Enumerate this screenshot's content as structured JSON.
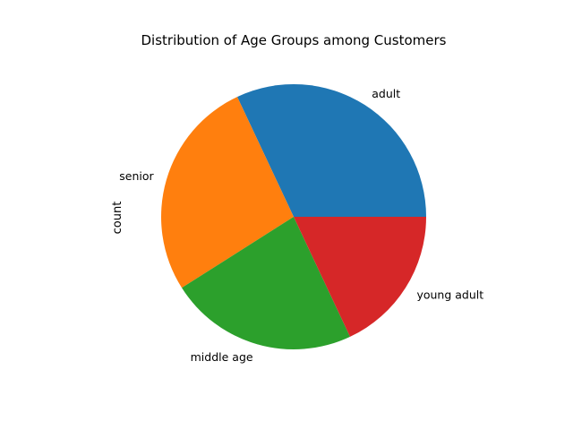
{
  "chart_data": {
    "type": "pie",
    "title": "Distribution of Age Groups among Customers",
    "ylabel": "count",
    "xlabel": "",
    "categories": [
      "adult",
      "senior",
      "middle age",
      "young adult"
    ],
    "values": [
      32,
      27,
      23,
      18
    ],
    "colors": [
      "#1f77b4",
      "#ff7f0e",
      "#2ca02c",
      "#d62728"
    ],
    "start_angle_deg": 0,
    "direction": "counterclockwise",
    "legend": "none"
  }
}
